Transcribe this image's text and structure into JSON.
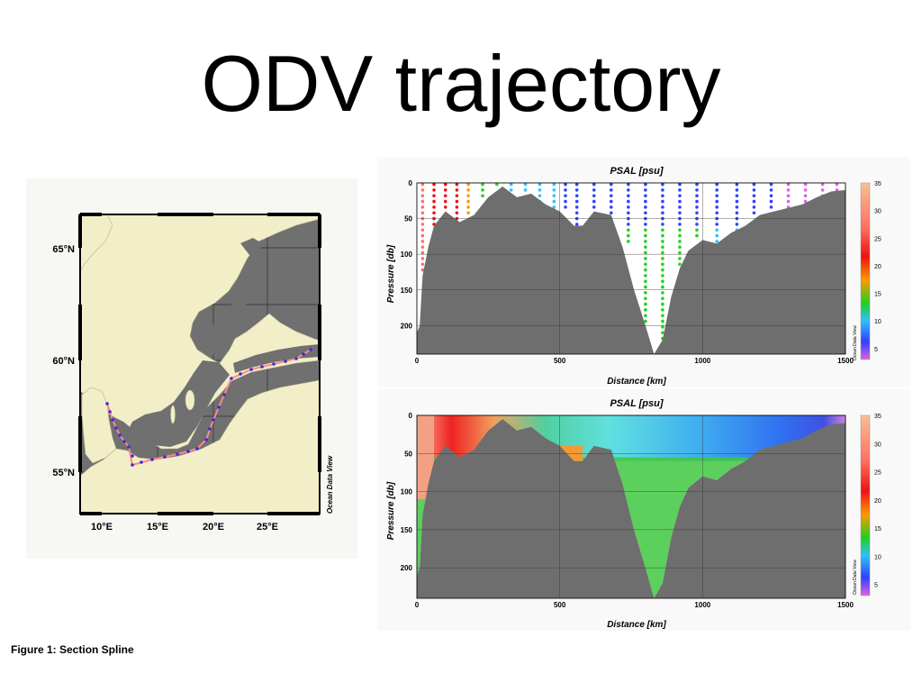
{
  "slide": {
    "title": "ODV trajectory"
  },
  "caption": "Figure 1: Section Spline",
  "map": {
    "lat_labels": [
      "65°N",
      "60°N",
      "55°N"
    ],
    "lon_labels": [
      "10°E",
      "15°E",
      "20°E",
      "25°E"
    ],
    "watermark": "Ocean Data View",
    "colors": {
      "land": "#f2eec8",
      "sea": "#707070",
      "track": "#ff8888",
      "stations": "#3b2bd6"
    }
  },
  "chart_data": [
    {
      "type": "scatter",
      "title": "PSAL [psu]",
      "xlabel": "Distance [km]",
      "ylabel": "Pressure [db]",
      "xlim": [
        0,
        1500
      ],
      "ylim": [
        240,
        0
      ],
      "x_ticks": [
        "0",
        "500",
        "1000",
        "1500"
      ],
      "y_ticks": [
        "0",
        "50",
        "100",
        "150",
        "200"
      ],
      "colorbar": {
        "label": "Ocean Data View",
        "ticks": [
          "35",
          "30",
          "25",
          "20",
          "15",
          "10",
          "5"
        ],
        "range": [
          3,
          35
        ]
      },
      "bottom_depth": [
        [
          0,
          210
        ],
        [
          10,
          200
        ],
        [
          20,
          130
        ],
        [
          40,
          90
        ],
        [
          60,
          60
        ],
        [
          100,
          40
        ],
        [
          150,
          55
        ],
        [
          200,
          45
        ],
        [
          250,
          20
        ],
        [
          300,
          5
        ],
        [
          350,
          20
        ],
        [
          400,
          15
        ],
        [
          450,
          30
        ],
        [
          500,
          40
        ],
        [
          550,
          60
        ],
        [
          580,
          60
        ],
        [
          620,
          40
        ],
        [
          680,
          45
        ],
        [
          720,
          90
        ],
        [
          760,
          150
        ],
        [
          800,
          200
        ],
        [
          830,
          240
        ],
        [
          860,
          220
        ],
        [
          890,
          160
        ],
        [
          920,
          120
        ],
        [
          950,
          95
        ],
        [
          1000,
          80
        ],
        [
          1050,
          85
        ],
        [
          1100,
          70
        ],
        [
          1150,
          60
        ],
        [
          1200,
          45
        ],
        [
          1250,
          40
        ],
        [
          1300,
          35
        ],
        [
          1350,
          30
        ],
        [
          1400,
          20
        ],
        [
          1450,
          12
        ],
        [
          1500,
          10
        ]
      ],
      "series": [
        {
          "name": "stations",
          "x": [
            20,
            60,
            100,
            140,
            180,
            230,
            280,
            330,
            380,
            430,
            480,
            520,
            560,
            620,
            680,
            740,
            800,
            860,
            920,
            980,
            1050,
            1120,
            1180,
            1240,
            1300,
            1360,
            1420,
            1470
          ],
          "surface_psal": [
            32,
            27,
            22,
            20,
            17,
            13,
            10,
            9,
            8,
            8,
            8,
            7,
            7,
            7,
            7,
            6,
            6,
            6,
            6,
            6,
            5,
            5,
            5,
            5,
            4,
            4,
            3,
            3
          ]
        }
      ]
    },
    {
      "type": "heatmap",
      "title": "PSAL [psu]",
      "xlabel": "Distance [km]",
      "ylabel": "Pressure [db]",
      "xlim": [
        0,
        1500
      ],
      "ylim": [
        240,
        0
      ],
      "x_ticks": [
        "0",
        "500",
        "1000",
        "1500"
      ],
      "y_ticks": [
        "0",
        "50",
        "100",
        "150",
        "200"
      ],
      "colorbar": {
        "label": "Ocean Data View",
        "ticks": [
          "35",
          "30",
          "25",
          "20",
          "15",
          "10",
          "5"
        ],
        "range": [
          3,
          35
        ]
      },
      "bottom_depth": [
        [
          0,
          210
        ],
        [
          10,
          200
        ],
        [
          20,
          130
        ],
        [
          40,
          90
        ],
        [
          60,
          60
        ],
        [
          100,
          40
        ],
        [
          150,
          55
        ],
        [
          200,
          45
        ],
        [
          250,
          20
        ],
        [
          300,
          5
        ],
        [
          350,
          20
        ],
        [
          400,
          15
        ],
        [
          450,
          30
        ],
        [
          500,
          40
        ],
        [
          550,
          60
        ],
        [
          580,
          60
        ],
        [
          620,
          40
        ],
        [
          680,
          45
        ],
        [
          720,
          90
        ],
        [
          760,
          150
        ],
        [
          800,
          200
        ],
        [
          830,
          240
        ],
        [
          860,
          220
        ],
        [
          890,
          160
        ],
        [
          920,
          120
        ],
        [
          950,
          95
        ],
        [
          1000,
          80
        ],
        [
          1050,
          85
        ],
        [
          1100,
          70
        ],
        [
          1150,
          60
        ],
        [
          1200,
          45
        ],
        [
          1250,
          40
        ],
        [
          1300,
          35
        ],
        [
          1350,
          30
        ],
        [
          1400,
          20
        ],
        [
          1450,
          12
        ],
        [
          1500,
          10
        ]
      ]
    }
  ]
}
